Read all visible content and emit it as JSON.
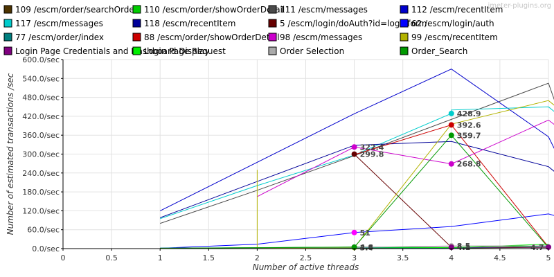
{
  "watermark": "jmeter-plugins.org",
  "chart_data": {
    "type": "line",
    "title": "",
    "xlabel": "Number of active threads",
    "ylabel": "Number of estimated transactions /sec",
    "xlim": [
      0,
      5
    ],
    "ylim": [
      0,
      600
    ],
    "x_ticks": [
      "0",
      "0.5",
      "1",
      "1.5",
      "2",
      "2.5",
      "3",
      "3.5",
      "4",
      "4.5",
      "5"
    ],
    "y_ticks": [
      "0.0/sec",
      "60.0/sec",
      "120.0/sec",
      "180.0/sec",
      "240.0/sec",
      "300.0/sec",
      "360.0/sec",
      "420.0/sec",
      "480.0/sec",
      "540.0/sec",
      "600.0/sec"
    ],
    "grid": true,
    "legend_position": "top",
    "series": [
      {
        "name": "109 /escm/order/searchOrder",
        "color": "#4d3300",
        "points": [
          [
            1,
            1
          ],
          [
            3,
            2
          ],
          [
            4,
            1.5
          ],
          [
            5,
            4
          ]
        ]
      },
      {
        "name": "110 /escm/order/showOrderDetail",
        "color": "#00cc00",
        "points": [
          [
            1,
            1
          ],
          [
            3,
            3
          ],
          [
            4,
            2
          ],
          [
            5,
            9
          ]
        ]
      },
      {
        "name": "111 /escm/messages",
        "color": "#4a4a4a",
        "points": [
          [
            1,
            80
          ],
          [
            2,
            185
          ],
          [
            3,
            295
          ],
          [
            4,
            410
          ],
          [
            5,
            525
          ],
          [
            5.12,
            420
          ]
        ]
      },
      {
        "name": "112 /escm/recentItem",
        "color": "#0000cc",
        "points": [
          [
            1,
            120
          ],
          [
            3,
            428
          ],
          [
            4,
            570
          ],
          [
            5,
            355
          ],
          [
            5.12,
            280
          ]
        ]
      },
      {
        "name": "117 /escm/messages",
        "color": "#00cccc",
        "points": [
          [
            1,
            95
          ],
          [
            2,
            200
          ],
          [
            3,
            297
          ],
          [
            4,
            428.9
          ],
          [
            4,
            440
          ],
          [
            5,
            450
          ],
          [
            5.12,
            420
          ]
        ]
      },
      {
        "name": "118 /escm/recentItem",
        "color": "#000099",
        "points": [
          [
            1,
            98
          ],
          [
            3,
            328
          ],
          [
            4,
            340
          ],
          [
            5,
            260
          ],
          [
            5.12,
            230
          ]
        ]
      },
      {
        "name": "5 /escm/login/doAuth?id=loginform",
        "color": "#660000",
        "points": [
          [
            3,
            299.8
          ],
          [
            4,
            4.4
          ]
        ]
      },
      {
        "name": "62 /escm/login/auth",
        "color": "#0000ff",
        "points": [
          [
            1,
            1
          ],
          [
            2,
            14
          ],
          [
            3,
            51
          ],
          [
            4,
            70
          ],
          [
            5,
            110
          ],
          [
            5.12,
            100
          ]
        ]
      },
      {
        "name": "77 /escm/order/index",
        "color": "#008080",
        "points": [
          [
            1,
            2
          ],
          [
            3,
            3
          ],
          [
            4,
            2
          ],
          [
            5,
            6
          ]
        ]
      },
      {
        "name": "88 /escm/order/showOrderDetail",
        "color": "#cc0000",
        "points": [
          [
            3,
            298
          ],
          [
            4,
            392.6
          ],
          [
            5,
            5
          ]
        ]
      },
      {
        "name": "98 /escm/messages",
        "color": "#cc00cc",
        "points": [
          [
            2,
            165
          ],
          [
            3,
            322.4
          ],
          [
            4,
            268.8
          ],
          [
            5,
            408
          ],
          [
            5.12,
            380
          ]
        ]
      },
      {
        "name": "99 /escm/recentItem",
        "color": "#b3b300",
        "points": [
          [
            2,
            250
          ],
          [
            2,
            1
          ],
          [
            3,
            3.4
          ],
          [
            4,
            395
          ],
          [
            5,
            470
          ],
          [
            5.12,
            440
          ]
        ]
      },
      {
        "name": "Login Page Credentials and Dashboard Display",
        "color": "#800080",
        "points": [
          [
            1,
            1
          ],
          [
            3,
            4.8
          ],
          [
            4,
            4.1
          ],
          [
            5,
            4.7
          ]
        ]
      },
      {
        "name": "Login Page Request",
        "color": "#00ee00",
        "points": [
          [
            1,
            1
          ],
          [
            3,
            5
          ],
          [
            4,
            3
          ],
          [
            5,
            14
          ]
        ]
      },
      {
        "name": "Order Selection",
        "color": "#aaaaaa",
        "points": [
          [
            1,
            1
          ],
          [
            3,
            4
          ],
          [
            4,
            8.5
          ],
          [
            5,
            9
          ]
        ]
      },
      {
        "name": "Order_Search",
        "color": "#009900",
        "points": [
          [
            1,
            1
          ],
          [
            3,
            4.6
          ],
          [
            4,
            359.7
          ],
          [
            5,
            3
          ]
        ]
      }
    ],
    "markers": [
      {
        "x": 4,
        "y": 428.9,
        "label": "428.9",
        "color": "#00cccc"
      },
      {
        "x": 4,
        "y": 392.6,
        "label": "392.6",
        "color": "#cc0000"
      },
      {
        "x": 4,
        "y": 359.7,
        "label": "359.7",
        "color": "#009900"
      },
      {
        "x": 3,
        "y": 322.4,
        "label": "322.4",
        "color": "#cc00cc"
      },
      {
        "x": 3,
        "y": 299.8,
        "label": "299.8",
        "color": "#660000"
      },
      {
        "x": 4,
        "y": 268.8,
        "label": "268.8",
        "color": "#cc00cc"
      },
      {
        "x": 3,
        "y": 51,
        "label": "51",
        "color": "#ff00ff"
      },
      {
        "x": 3,
        "y": 3.4,
        "label": "3.4",
        "color": "#b3b300"
      },
      {
        "x": 3,
        "y": 4.8,
        "label": "4.8",
        "color": "#800080"
      },
      {
        "x": 3,
        "y": 4.6,
        "label": "4.6",
        "color": "#009900"
      },
      {
        "x": 4,
        "y": 8.5,
        "label": "8.5",
        "color": "#aaaaaa"
      },
      {
        "x": 4,
        "y": 4.4,
        "label": "4.4",
        "color": "#660000"
      },
      {
        "x": 4,
        "y": 4.1,
        "label": "4.1",
        "color": "#800080"
      },
      {
        "x": 5,
        "y": 4.7,
        "label": "4.7",
        "color": "#800080"
      }
    ]
  }
}
